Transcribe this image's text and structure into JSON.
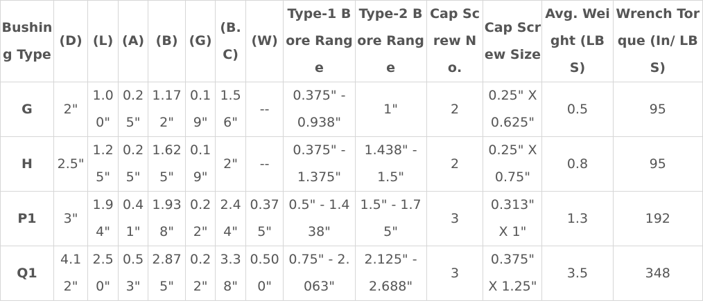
{
  "table": {
    "headers": [
      "Bushing Type",
      "(D)",
      "(L)",
      "(A)",
      "(B)",
      "(G)",
      "(B.C)",
      "(W)",
      "Type-1 Bore Range",
      "Type-2 Bore Range",
      "Cap Screw No.",
      "Cap Screw Size",
      "Avg. Weight (LBS)",
      "Wrench Torque (In/ LBS)"
    ],
    "rows": [
      [
        "G",
        "2\"",
        "1.00\"",
        "0.25\"",
        "1.172\"",
        "0.19\"",
        "1.56\"",
        "--",
        "0.375\" - 0.938\"",
        "1\"",
        "2",
        "0.25\" X 0.625\"",
        "0.5",
        "95"
      ],
      [
        "H",
        "2.5\"",
        "1.25\"",
        "0.25\"",
        "1.625\"",
        "0.19\"",
        "2\"",
        "--",
        "0.375\" - 1.375\"",
        "1.438\" - 1.5\"",
        "2",
        "0.25\" X 0.75\"",
        "0.8",
        "95"
      ],
      [
        "P1",
        "3\"",
        "1.94\"",
        "0.41\"",
        "1.938\"",
        "0.22\"",
        "2.44\"",
        "0.375\"",
        "0.5\" - 1.438\"",
        "1.5\" - 1.75\"",
        "3",
        "0.313\" X 1\"",
        "1.3",
        "192"
      ],
      [
        "Q1",
        "4.12\"",
        "2.50\"",
        "0.53\"",
        "2.875\"",
        "0.22\"",
        "3.38\"",
        "0.500\"",
        "0.75\" - 2.063\"",
        "2.125\" - 2.688\"",
        "3",
        "0.375\" X 1.25\"",
        "3.5",
        "348"
      ]
    ]
  }
}
